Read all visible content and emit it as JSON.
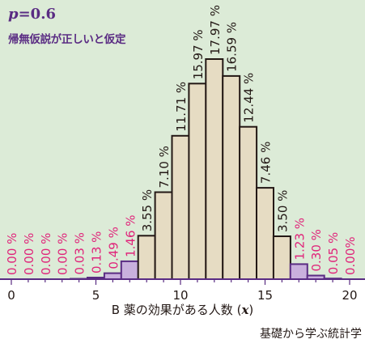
{
  "header": {
    "p_var": "p",
    "p_value": "=0.6",
    "hypothesis": "帰無仮説が正しいと仮定"
  },
  "axis": {
    "x_title": "B 薬の効果がある人数",
    "x_var_open": "(",
    "x_var": "x",
    "x_var_close": ")"
  },
  "footer": {
    "credit": "基礎から学ぶ統計学"
  },
  "colors": {
    "background": "#dcebd7",
    "bar_fill": "#e6dcc3",
    "bar_edge": "#231815",
    "reject_fill": "#c9b0dd",
    "reject_edge": "#5a2c83",
    "axis": "#5a2c83",
    "accept_label": "#231815",
    "reject_label": "#e0247a"
  },
  "chart_data": {
    "type": "bar",
    "title": "p=0.6",
    "xlabel": "B 薬の効果がある人数 (x)",
    "ylabel": "",
    "x": [
      0,
      1,
      2,
      3,
      4,
      5,
      6,
      7,
      8,
      9,
      10,
      11,
      12,
      13,
      14,
      15,
      16,
      17,
      18,
      19,
      20
    ],
    "values": [
      0.0,
      0.0,
      0.0,
      0.0,
      0.03,
      0.13,
      0.49,
      1.46,
      3.55,
      7.1,
      11.71,
      15.97,
      17.97,
      16.59,
      12.44,
      7.46,
      3.5,
      1.23,
      0.3,
      0.05,
      0.0
    ],
    "labels": [
      "0.00 %",
      "0.00 %",
      "0.00 %",
      "0.00 %",
      "0.03 %",
      "0.13 %",
      "0.49 %",
      "1.46 %",
      "3.55 %",
      "7.10 %",
      "11.71 %",
      "15.97 %",
      "17.97 %",
      "16.59 %",
      "12.44 %",
      "7.46 %",
      "3.50 %",
      "1.23 %",
      "0.30 %",
      "0.05 %",
      "0.00%"
    ],
    "rejection_region": [
      0,
      1,
      2,
      3,
      4,
      5,
      6,
      7,
      17,
      18,
      19,
      20
    ],
    "xticks": [
      0,
      5,
      10,
      15,
      20
    ],
    "xlim": [
      0,
      20
    ],
    "ylim": [
      0,
      18
    ],
    "grid": false,
    "legend": "none"
  }
}
